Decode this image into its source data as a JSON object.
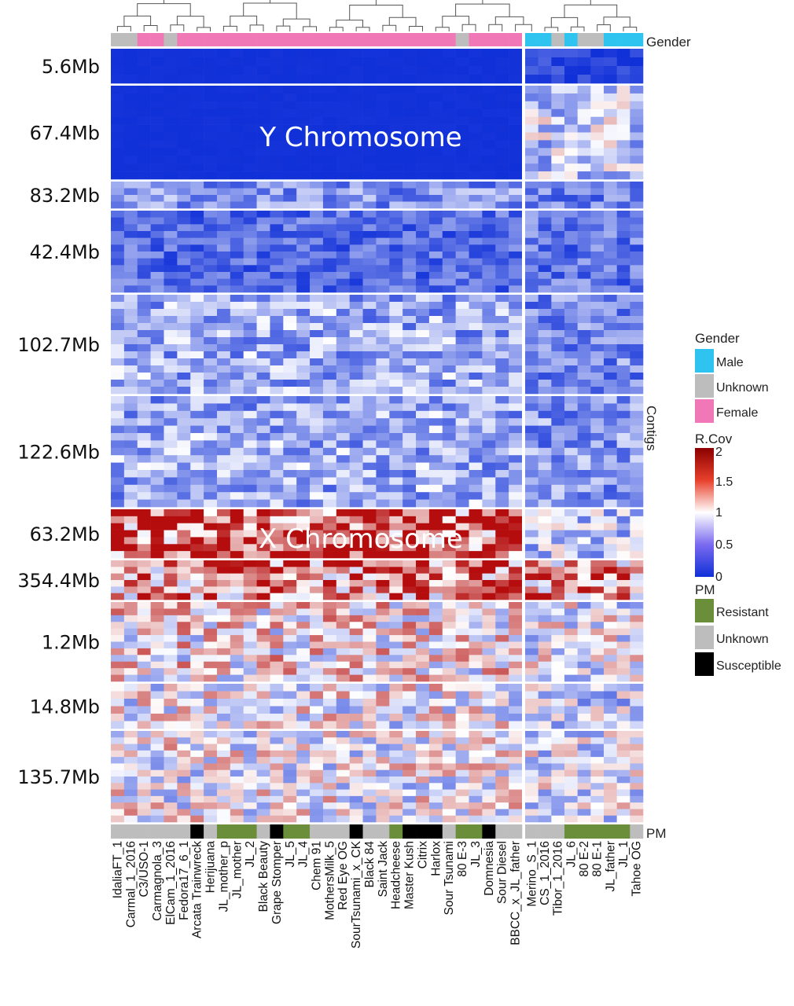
{
  "chart_data": {
    "type": "heatmap",
    "title": "",
    "xlabel": "",
    "ylabel": "",
    "samples": [
      "IdaliaFT_1",
      "Carmal_1_2016",
      "C3/USO-1",
      "Carmagnola_3",
      "ElCam_1_2016",
      "Fedora17_6_1",
      "Arcata Trainwreck",
      "Herijuana",
      "JL_mother_p",
      "JL_mother",
      "JL_2",
      "Black Beauty",
      "Grape Stomper",
      "JL_5",
      "JL_4",
      "Chem 91",
      "MothersMilk_5",
      "Red Eye OG",
      "SourTsunami_x_CK",
      "Black 84",
      "Saint Jack",
      "Headcheese",
      "Master Kush",
      "Citrix",
      "Harlox",
      "Sour Tsunami",
      "80 E-3",
      "JL_3",
      "Domnesia",
      "Sour Diesel",
      "BBCC_x_JL_father",
      "Merino_S_1",
      "CS_1_2016",
      "Tibor_1_2016",
      "JL_6",
      "80 E-2",
      "80 E-1",
      "JL_father",
      "JL_1",
      "Tahoe OG"
    ],
    "left_group_count": 31,
    "row_groups": [
      {
        "label": "5.6Mb",
        "rows": 4
      },
      {
        "label": "67.4Mb",
        "rows": 12
      },
      {
        "label": "83.2Mb",
        "rows": 4
      },
      {
        "label": "42.4Mb",
        "rows": 12
      },
      {
        "label": "102.7Mb",
        "rows": 14
      },
      {
        "label": "122.6Mb",
        "rows": 15
      },
      {
        "label": "63.2Mb",
        "rows": 7
      },
      {
        "label": "354.4Mb",
        "rows": 6
      },
      {
        "label": "1.2Mb",
        "rows": 12
      },
      {
        "label": "14.8Mb",
        "rows": 6
      },
      {
        "label": "135.7Mb",
        "rows": 14
      }
    ],
    "group_mean_rcov": {
      "left": [
        0.0,
        0.0,
        0.5,
        0.3,
        0.6,
        0.6,
        1.8,
        1.5,
        1.1,
        1.0,
        1.0
      ],
      "right": [
        0.1,
        0.8,
        0.4,
        0.35,
        0.45,
        0.5,
        0.75,
        1.5,
        0.95,
        0.8,
        0.9
      ]
    },
    "chromosome_annotations": [
      {
        "label": "Y Chromosome",
        "row_group": 1
      },
      {
        "label": "X Chromosome",
        "row_group": 6
      }
    ],
    "gender": [
      "Unknown",
      "Unknown",
      "Female",
      "Female",
      "Unknown",
      "Female",
      "Female",
      "Female",
      "Female",
      "Female",
      "Female",
      "Female",
      "Female",
      "Female",
      "Female",
      "Female",
      "Female",
      "Female",
      "Female",
      "Female",
      "Female",
      "Female",
      "Female",
      "Female",
      "Female",
      "Female",
      "Unknown",
      "Female",
      "Female",
      "Female",
      "Female",
      "Male",
      "Male",
      "Unknown",
      "Male",
      "Unknown",
      "Unknown",
      "Male",
      "Male",
      "Male"
    ],
    "pm": [
      "Unknown",
      "Unknown",
      "Unknown",
      "Unknown",
      "Unknown",
      "Unknown",
      "Susceptible",
      "Unknown",
      "Resistant",
      "Resistant",
      "Resistant",
      "Unknown",
      "Susceptible",
      "Resistant",
      "Resistant",
      "Unknown",
      "Unknown",
      "Unknown",
      "Susceptible",
      "Unknown",
      "Unknown",
      "Resistant",
      "Susceptible",
      "Susceptible",
      "Susceptible",
      "Unknown",
      "Resistant",
      "Resistant",
      "Susceptible",
      "Unknown",
      "Unknown",
      "Unknown",
      "Unknown",
      "Unknown",
      "Resistant",
      "Resistant",
      "Resistant",
      "Resistant",
      "Resistant",
      "Unknown"
    ],
    "colorscale": {
      "min": 0,
      "mid": 1,
      "max": 2,
      "low": "#1030d8",
      "midColor": "#ffffff",
      "high": "#b50d0d"
    },
    "gender_colors": {
      "Male": "#2ec4ef",
      "Unknown": "#bdbdbd",
      "Female": "#f178b6"
    },
    "pm_colors": {
      "Resistant": "#6b8e3a",
      "Unknown": "#bdbdbd",
      "Susceptible": "#000000"
    }
  },
  "annotations": {
    "gender_label": "Gender",
    "pm_label": "PM",
    "contigs_label": "Contigs"
  },
  "legend": {
    "gender": {
      "title": "Gender",
      "items": [
        "Male",
        "Unknown",
        "Female"
      ]
    },
    "rcov": {
      "title": "R.Cov",
      "ticks": [
        "2",
        "1.5",
        "1",
        "0.5",
        "0"
      ]
    },
    "pm": {
      "title": "PM",
      "items": [
        "Resistant",
        "Unknown",
        "Susceptible"
      ]
    }
  }
}
